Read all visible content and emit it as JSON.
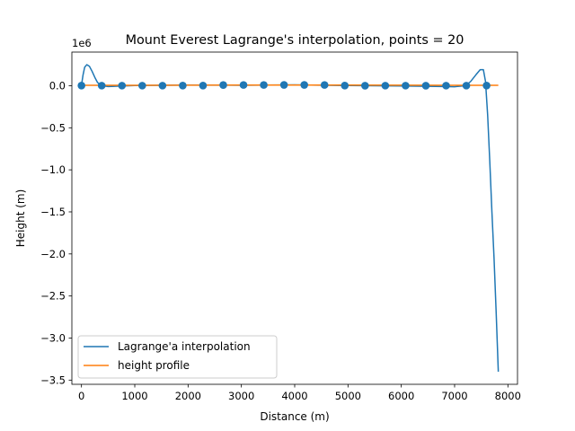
{
  "chart_data": {
    "type": "line",
    "title": "Mount Everest Lagrange's interpolation, points = 20",
    "xlabel": "Distance (m)",
    "ylabel": "Height (m)",
    "y_multiplier_label": "1e6",
    "xlim": [
      -180,
      8180
    ],
    "ylim": [
      -3.55,
      0.4
    ],
    "x_ticks": [
      0,
      1000,
      2000,
      3000,
      4000,
      5000,
      6000,
      7000,
      8000
    ],
    "x_tick_labels": [
      "0",
      "1000",
      "2000",
      "3000",
      "4000",
      "5000",
      "6000",
      "7000",
      "8000"
    ],
    "y_ticks": [
      0.0,
      -0.5,
      -1.0,
      -1.5,
      -2.0,
      -2.5,
      -3.0,
      -3.5
    ],
    "y_tick_labels": [
      "0.0",
      "−0.5",
      "−1.0",
      "−1.5",
      "−2.0",
      "−2.5",
      "−3.0",
      "−3.5"
    ],
    "grid": false,
    "legend_position": "lower-left",
    "colors": {
      "interpolation": "#1f77b4",
      "profile": "#ff7f0e",
      "nodes": "#1f77b4"
    },
    "series": [
      {
        "name": "Lagrange'a interpolation",
        "x": [
          0,
          30,
          60,
          100,
          150,
          200,
          250,
          300,
          350,
          390,
          500,
          1000,
          2000,
          3000,
          4000,
          5000,
          6000,
          6800,
          7000,
          7200,
          7300,
          7400,
          7480,
          7540,
          7580,
          7620,
          7660,
          7700,
          7740,
          7780,
          7820
        ],
        "y": [
          0.005,
          0.13,
          0.22,
          0.25,
          0.23,
          0.17,
          0.1,
          0.04,
          0.01,
          0.0,
          -0.01,
          0.003,
          0.008,
          0.005,
          0.01,
          0.002,
          -0.003,
          -0.01,
          -0.012,
          0.0,
          0.05,
          0.13,
          0.19,
          0.19,
          0.05,
          -0.35,
          -0.9,
          -1.5,
          -2.05,
          -2.7,
          -3.4
        ]
      },
      {
        "name": "height profile",
        "x": [
          0,
          1000,
          2000,
          3000,
          4000,
          5000,
          6000,
          7000,
          7820
        ],
        "y": [
          0.005,
          0.005,
          0.006,
          0.008,
          0.008,
          0.007,
          0.006,
          0.005,
          0.005
        ]
      }
    ],
    "nodes": {
      "x": [
        0,
        380,
        760,
        1140,
        1520,
        1900,
        2280,
        2660,
        3040,
        3420,
        3800,
        4180,
        4560,
        4940,
        5320,
        5700,
        6080,
        6460,
        6840,
        7220,
        7600
      ],
      "y": [
        0.002,
        0.001,
        0.001,
        0.001,
        0.001,
        0.002,
        0.002,
        0.008,
        0.009,
        0.009,
        0.01,
        0.01,
        0.009,
        0.002,
        0.0,
        0.001,
        0.001,
        0.0,
        0.001,
        0.001,
        0.002
      ]
    }
  }
}
